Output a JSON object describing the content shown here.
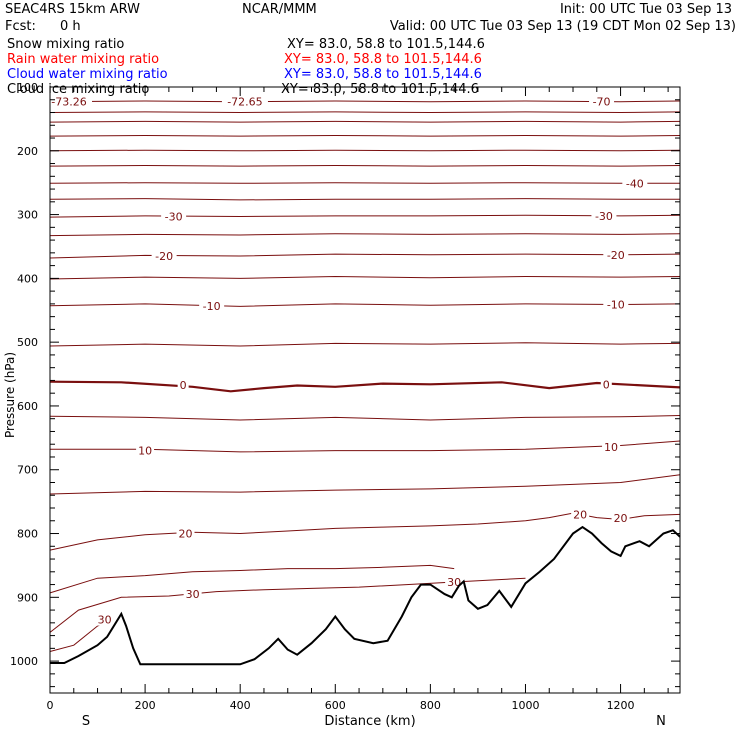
{
  "header": {
    "model": "SEAC4RS 15km ARW",
    "org": "NCAR/MMM",
    "init": "Init: 00 UTC Tue 03 Sep 13",
    "fcst_label": "Fcst:",
    "fcst_value": "0 h",
    "valid": "Valid: 00 UTC Tue 03 Sep 13 (19 CDT Mon 02 Sep 13)"
  },
  "legend": [
    {
      "label": "Snow mixing ratio",
      "xy": "XY=  83.0, 58.8 to 101.5,144.6",
      "color": "#000000"
    },
    {
      "label": "Rain water mixing ratio",
      "xy": "XY=  83.0, 58.8 to 101.5,144.6",
      "color": "#ff0000"
    },
    {
      "label": "Cloud water mixing ratio",
      "xy": "XY=  83.0, 58.8 to 101.5,144.6",
      "color": "#0000ff"
    },
    {
      "label": "Cloud ice mixing ratio",
      "xy": "XY=  83.0, 58.8 to 101.5,144.6",
      "color": "#000000"
    }
  ],
  "chart_data": {
    "type": "line",
    "xlabel": "Distance (km)",
    "ylabel": "Pressure (hPa)",
    "xlim": [
      0,
      1325
    ],
    "ylim_hpa": [
      100,
      1050
    ],
    "x_ticks": [
      "0",
      "200",
      "400",
      "600",
      "800",
      "1000",
      "1200"
    ],
    "y_ticks": [
      "100",
      "200",
      "300",
      "400",
      "500",
      "600",
      "700",
      "800",
      "900",
      "1000"
    ],
    "x_end_labels": {
      "left": "S",
      "right": "N"
    },
    "contour_color": "#7a0f0f",
    "terrain_color": "#000000",
    "series": [
      {
        "level": -72,
        "thick": false,
        "points": [
          [
            0,
            123
          ],
          [
            200,
            122
          ],
          [
            400,
            123
          ],
          [
            600,
            122
          ],
          [
            800,
            123
          ],
          [
            1000,
            122
          ],
          [
            1200,
            123
          ],
          [
            1325,
            122
          ]
        ]
      },
      {
        "level": -65,
        "thick": false,
        "points": [
          [
            0,
            140
          ],
          [
            200,
            139
          ],
          [
            400,
            140
          ],
          [
            600,
            139
          ],
          [
            800,
            140
          ],
          [
            1000,
            139
          ],
          [
            1200,
            140
          ],
          [
            1325,
            139
          ]
        ]
      },
      {
        "level": -60,
        "thick": false,
        "points": [
          [
            0,
            155
          ],
          [
            200,
            154
          ],
          [
            400,
            155
          ],
          [
            600,
            154
          ],
          [
            800,
            155
          ],
          [
            1000,
            154
          ],
          [
            1200,
            155
          ],
          [
            1325,
            154
          ]
        ]
      },
      {
        "level": -55,
        "thick": false,
        "points": [
          [
            0,
            177
          ],
          [
            200,
            176
          ],
          [
            400,
            177
          ],
          [
            600,
            176
          ],
          [
            800,
            177
          ],
          [
            1000,
            176
          ],
          [
            1200,
            177
          ],
          [
            1325,
            176
          ]
        ]
      },
      {
        "level": -50,
        "thick": false,
        "points": [
          [
            0,
            200
          ],
          [
            200,
            199
          ],
          [
            400,
            200
          ],
          [
            600,
            199
          ],
          [
            800,
            200
          ],
          [
            1000,
            199
          ],
          [
            1200,
            200
          ],
          [
            1325,
            199
          ]
        ]
      },
      {
        "level": -45,
        "thick": false,
        "points": [
          [
            0,
            224
          ],
          [
            200,
            223
          ],
          [
            400,
            224
          ],
          [
            600,
            223
          ],
          [
            800,
            224
          ],
          [
            1000,
            223
          ],
          [
            1200,
            224
          ],
          [
            1325,
            223
          ]
        ]
      },
      {
        "level": -40,
        "thick": false,
        "points": [
          [
            0,
            251
          ],
          [
            200,
            250
          ],
          [
            400,
            251
          ],
          [
            600,
            250
          ],
          [
            800,
            251
          ],
          [
            1000,
            250
          ],
          [
            1200,
            251
          ],
          [
            1325,
            251
          ]
        ]
      },
      {
        "level": -35,
        "thick": false,
        "points": [
          [
            0,
            276
          ],
          [
            200,
            275
          ],
          [
            400,
            277
          ],
          [
            600,
            276
          ],
          [
            800,
            276
          ],
          [
            1000,
            275
          ],
          [
            1200,
            276
          ],
          [
            1325,
            276
          ]
        ]
      },
      {
        "level": -30,
        "thick": false,
        "points": [
          [
            0,
            304
          ],
          [
            200,
            302
          ],
          [
            400,
            303
          ],
          [
            600,
            302
          ],
          [
            800,
            302
          ],
          [
            1000,
            301
          ],
          [
            1200,
            302
          ],
          [
            1325,
            301
          ]
        ]
      },
      {
        "level": -25,
        "thick": false,
        "points": [
          [
            0,
            333
          ],
          [
            200,
            331
          ],
          [
            400,
            332
          ],
          [
            600,
            330
          ],
          [
            800,
            331
          ],
          [
            1000,
            330
          ],
          [
            1200,
            331
          ],
          [
            1325,
            330
          ]
        ]
      },
      {
        "level": -20,
        "thick": false,
        "points": [
          [
            0,
            368
          ],
          [
            200,
            364
          ],
          [
            400,
            365
          ],
          [
            600,
            362
          ],
          [
            800,
            363
          ],
          [
            1000,
            362
          ],
          [
            1200,
            363
          ],
          [
            1325,
            362
          ]
        ]
      },
      {
        "level": -15,
        "thick": false,
        "points": [
          [
            0,
            401
          ],
          [
            200,
            398
          ],
          [
            400,
            400
          ],
          [
            600,
            397
          ],
          [
            800,
            399
          ],
          [
            1000,
            397
          ],
          [
            1200,
            398
          ],
          [
            1325,
            397
          ]
        ]
      },
      {
        "level": -10,
        "thick": false,
        "points": [
          [
            0,
            443
          ],
          [
            200,
            440
          ],
          [
            400,
            444
          ],
          [
            600,
            440
          ],
          [
            800,
            442
          ],
          [
            1000,
            440
          ],
          [
            1200,
            441
          ],
          [
            1325,
            440
          ]
        ]
      },
      {
        "level": -5,
        "thick": false,
        "points": [
          [
            0,
            506
          ],
          [
            200,
            503
          ],
          [
            400,
            506
          ],
          [
            600,
            502
          ],
          [
            800,
            503
          ],
          [
            1000,
            501
          ],
          [
            1200,
            503
          ],
          [
            1325,
            502
          ]
        ]
      },
      {
        "level": 0,
        "thick": true,
        "points": [
          [
            0,
            562
          ],
          [
            150,
            563
          ],
          [
            300,
            570
          ],
          [
            380,
            577
          ],
          [
            450,
            572
          ],
          [
            520,
            568
          ],
          [
            600,
            570
          ],
          [
            700,
            565
          ],
          [
            800,
            566
          ],
          [
            950,
            563
          ],
          [
            1050,
            572
          ],
          [
            1150,
            564
          ],
          [
            1250,
            568
          ],
          [
            1325,
            571
          ]
        ]
      },
      {
        "level": 5,
        "thick": false,
        "points": [
          [
            0,
            616
          ],
          [
            200,
            618
          ],
          [
            400,
            622
          ],
          [
            600,
            618
          ],
          [
            800,
            622
          ],
          [
            1000,
            618
          ],
          [
            1200,
            617
          ],
          [
            1325,
            615
          ]
        ]
      },
      {
        "level": 10,
        "thick": false,
        "points": [
          [
            0,
            668
          ],
          [
            200,
            668
          ],
          [
            400,
            672
          ],
          [
            600,
            670
          ],
          [
            800,
            670
          ],
          [
            1000,
            668
          ],
          [
            1200,
            662
          ],
          [
            1325,
            655
          ]
        ]
      },
      {
        "level": 15,
        "thick": false,
        "points": [
          [
            0,
            738
          ],
          [
            200,
            734
          ],
          [
            400,
            735
          ],
          [
            600,
            732
          ],
          [
            800,
            730
          ],
          [
            1000,
            726
          ],
          [
            1200,
            720
          ],
          [
            1325,
            708
          ]
        ]
      },
      {
        "level": 20,
        "thick": false,
        "points": [
          [
            0,
            826
          ],
          [
            100,
            810
          ],
          [
            200,
            802
          ],
          [
            300,
            798
          ],
          [
            400,
            800
          ],
          [
            500,
            796
          ],
          [
            600,
            792
          ],
          [
            700,
            790
          ],
          [
            800,
            788
          ],
          [
            900,
            785
          ],
          [
            1000,
            780
          ],
          [
            1050,
            775
          ],
          [
            1100,
            768
          ],
          [
            1150,
            775
          ],
          [
            1200,
            778
          ],
          [
            1250,
            772
          ],
          [
            1325,
            770
          ]
        ]
      },
      {
        "level": 25,
        "thick": false,
        "points": [
          [
            0,
            893
          ],
          [
            100,
            870
          ],
          [
            200,
            866
          ],
          [
            300,
            860
          ],
          [
            400,
            858
          ],
          [
            500,
            855
          ],
          [
            600,
            855
          ],
          [
            700,
            853
          ],
          [
            800,
            850
          ],
          [
            850,
            855
          ]
        ]
      },
      {
        "level": 30,
        "thick": false,
        "points": [
          [
            0,
            955
          ],
          [
            60,
            920
          ],
          [
            150,
            900
          ],
          [
            250,
            898
          ],
          [
            350,
            891
          ],
          [
            450,
            888
          ],
          [
            550,
            886
          ],
          [
            650,
            884
          ],
          [
            750,
            880
          ],
          [
            850,
            876
          ],
          [
            950,
            872
          ],
          [
            1000,
            870
          ]
        ]
      },
      {
        "level": 35,
        "thick": false,
        "points": [
          [
            0,
            985
          ],
          [
            50,
            975
          ],
          [
            100,
            945
          ],
          [
            130,
            935
          ]
        ]
      }
    ],
    "terrain": [
      [
        0,
        1003
      ],
      [
        30,
        1003
      ],
      [
        60,
        992
      ],
      [
        100,
        975
      ],
      [
        120,
        962
      ],
      [
        150,
        926
      ],
      [
        160,
        945
      ],
      [
        175,
        980
      ],
      [
        190,
        1005
      ],
      [
        260,
        1005
      ],
      [
        400,
        1005
      ],
      [
        430,
        997
      ],
      [
        460,
        980
      ],
      [
        480,
        965
      ],
      [
        500,
        982
      ],
      [
        520,
        990
      ],
      [
        550,
        972
      ],
      [
        580,
        950
      ],
      [
        600,
        930
      ],
      [
        620,
        950
      ],
      [
        640,
        965
      ],
      [
        680,
        972
      ],
      [
        710,
        968
      ],
      [
        740,
        930
      ],
      [
        760,
        900
      ],
      [
        780,
        880
      ],
      [
        800,
        880
      ],
      [
        830,
        895
      ],
      [
        845,
        900
      ],
      [
        860,
        882
      ],
      [
        870,
        875
      ],
      [
        880,
        905
      ],
      [
        900,
        918
      ],
      [
        920,
        912
      ],
      [
        945,
        890
      ],
      [
        970,
        915
      ],
      [
        1000,
        878
      ],
      [
        1030,
        860
      ],
      [
        1060,
        840
      ],
      [
        1100,
        800
      ],
      [
        1120,
        790
      ],
      [
        1140,
        800
      ],
      [
        1160,
        815
      ],
      [
        1180,
        828
      ],
      [
        1200,
        835
      ],
      [
        1210,
        820
      ],
      [
        1240,
        812
      ],
      [
        1260,
        820
      ],
      [
        1290,
        800
      ],
      [
        1310,
        795
      ],
      [
        1325,
        805
      ]
    ],
    "contour_labels": [
      {
        "text": "-73.26",
        "x": 40,
        "p": 123
      },
      {
        "text": "-72.65",
        "x": 410,
        "p": 123
      },
      {
        "text": "-70",
        "x": 1160,
        "p": 123
      },
      {
        "text": "-40",
        "x": 1230,
        "p": 251
      },
      {
        "text": "-30",
        "x": 260,
        "p": 303
      },
      {
        "text": "-30",
        "x": 1165,
        "p": 302
      },
      {
        "text": "-20",
        "x": 240,
        "p": 365
      },
      {
        "text": "-20",
        "x": 1190,
        "p": 363
      },
      {
        "text": "-10",
        "x": 340,
        "p": 443
      },
      {
        "text": "-10",
        "x": 1190,
        "p": 441
      },
      {
        "text": "0",
        "x": 280,
        "p": 567
      },
      {
        "text": "0",
        "x": 1170,
        "p": 566
      },
      {
        "text": "10",
        "x": 200,
        "p": 670
      },
      {
        "text": "10",
        "x": 1180,
        "p": 664
      },
      {
        "text": "20",
        "x": 285,
        "p": 800
      },
      {
        "text": "20",
        "x": 1115,
        "p": 770
      },
      {
        "text": "20",
        "x": 1200,
        "p": 776
      },
      {
        "text": "30",
        "x": 300,
        "p": 895
      },
      {
        "text": "30",
        "x": 850,
        "p": 876
      },
      {
        "text": "30",
        "x": 115,
        "p": 935
      }
    ]
  }
}
